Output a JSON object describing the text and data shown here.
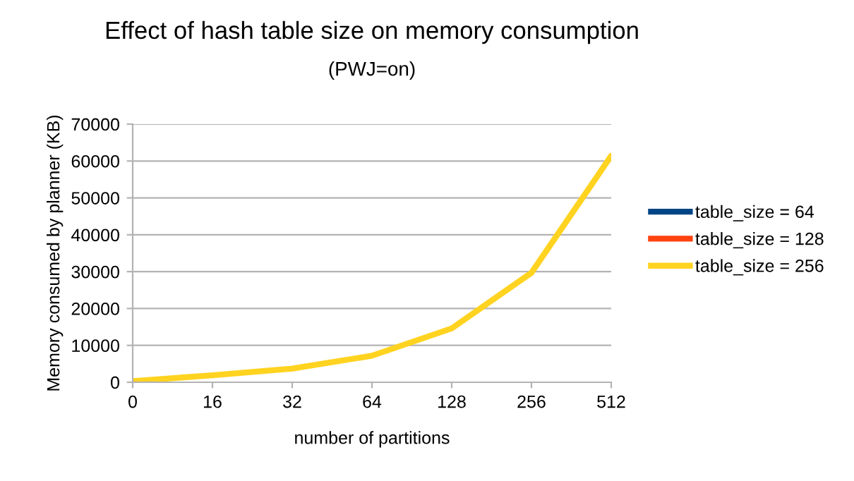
{
  "chart_data": {
    "type": "line",
    "title": "Effect of hash table size on memory consumption",
    "subtitle": "(PWJ=on)",
    "xlabel": "number of partitions",
    "ylabel": "Memory consumed by planner (KB)",
    "categories": [
      "0",
      "16",
      "32",
      "64",
      "128",
      "256",
      "512"
    ],
    "series": [
      {
        "name": "table_size = 64",
        "color": "#004586",
        "values": [
          null,
          null,
          null,
          null,
          null,
          null,
          null
        ]
      },
      {
        "name": "table_size = 128",
        "color": "#ff420e",
        "values": [
          null,
          null,
          null,
          null,
          null,
          null,
          null
        ]
      },
      {
        "name": "table_size = 256",
        "color": "#ffd320",
        "values": [
          300,
          1900,
          3700,
          7200,
          14600,
          29700,
          61400
        ]
      }
    ],
    "ylim": [
      0,
      70000
    ],
    "yticks": [
      0,
      10000,
      20000,
      30000,
      40000,
      50000,
      60000,
      70000
    ],
    "grid": "y",
    "legend": "right",
    "marker": "none",
    "line_style": "solid"
  }
}
